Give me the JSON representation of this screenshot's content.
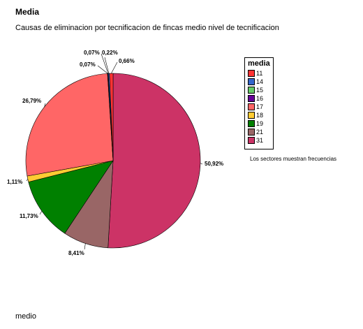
{
  "title": "Media",
  "subtitle": "Causas de eliminacion por tecnificacion de fincas medio nivel de  tecnificacion",
  "footer": "medio",
  "note": "Los sectores muestran frecuencias",
  "chart_data": {
    "type": "pie",
    "legend_title": "media",
    "legend_placement": "right",
    "slices": [
      {
        "category": "31",
        "value": 50.92,
        "label": "50,92%",
        "color": "#cc3366"
      },
      {
        "category": "21",
        "value": 8.41,
        "label": "8,41%",
        "color": "#996666"
      },
      {
        "category": "19",
        "value": 11.73,
        "label": "11,73%",
        "color": "#008000"
      },
      {
        "category": "18",
        "value": 1.11,
        "label": "1,11%",
        "color": "#ffcc33"
      },
      {
        "category": "17",
        "value": 26.79,
        "label": "26,79%",
        "color": "#ff6666"
      },
      {
        "category": "16",
        "value": 0.07,
        "label": "0,07%",
        "color": "#660099"
      },
      {
        "category": "15",
        "value": 0.07,
        "label": "0,07%",
        "color": "#66cc66"
      },
      {
        "category": "14",
        "value": 0.22,
        "label": "0,22%",
        "color": "#3366cc"
      },
      {
        "category": "11",
        "value": 0.66,
        "label": "0,66%",
        "color": "#ff3333"
      }
    ],
    "legend": [
      {
        "label": "11",
        "color": "#ff3333"
      },
      {
        "label": "14",
        "color": "#3366cc"
      },
      {
        "label": "15",
        "color": "#66cc66"
      },
      {
        "label": "16",
        "color": "#660099"
      },
      {
        "label": "17",
        "color": "#ff6666"
      },
      {
        "label": "18",
        "color": "#ffcc33"
      },
      {
        "label": "19",
        "color": "#008000"
      },
      {
        "label": "21",
        "color": "#996666"
      },
      {
        "label": "31",
        "color": "#cc3366"
      }
    ]
  }
}
